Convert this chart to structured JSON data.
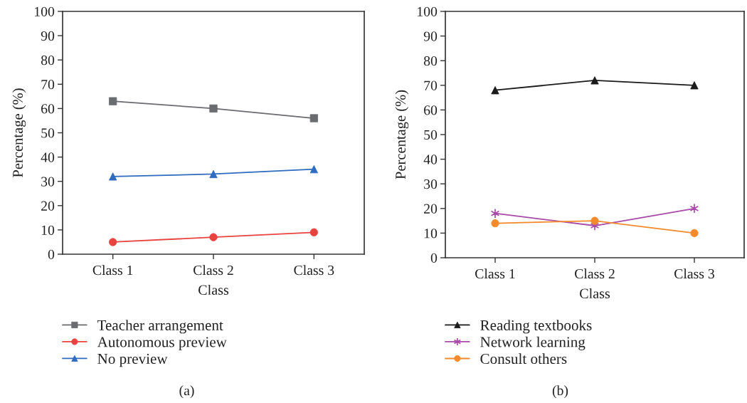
{
  "chart_data": [
    {
      "type": "line",
      "xlabel": "Class",
      "ylabel": "Percentage (%)",
      "categories": [
        "Class 1",
        "Class 2",
        "Class 3"
      ],
      "ylim": [
        0,
        100
      ],
      "yticks": [
        0,
        10,
        20,
        30,
        40,
        50,
        60,
        70,
        80,
        90,
        100
      ],
      "grid": false,
      "legend": "bottom",
      "line_style": "solid",
      "annotations": [
        "(a)"
      ],
      "series": [
        {
          "name": "Teacher arrangement",
          "color": "#6b6c70",
          "marker": "square",
          "values": [
            63,
            60,
            56
          ]
        },
        {
          "name": "Autonomous preview",
          "color": "#e8433f",
          "marker": "circle",
          "values": [
            5,
            7,
            9
          ]
        },
        {
          "name": "No preview",
          "color": "#2f6bbf",
          "marker": "triangle",
          "values": [
            32,
            33,
            35
          ]
        }
      ]
    },
    {
      "type": "line",
      "xlabel": "Class",
      "ylabel": "Percentage (%)",
      "categories": [
        "Class 1",
        "Class 2",
        "Class 3"
      ],
      "ylim": [
        0,
        100
      ],
      "yticks": [
        0,
        10,
        20,
        30,
        40,
        50,
        60,
        70,
        80,
        90,
        100
      ],
      "grid": false,
      "legend": "bottom",
      "line_style": "solid",
      "annotations": [
        "(b)"
      ],
      "series": [
        {
          "name": "Reading textbooks",
          "color": "#1a1a1a",
          "marker": "triangle",
          "values": [
            68,
            72,
            70
          ]
        },
        {
          "name": "Network learning",
          "color": "#a84aa8",
          "marker": "cross",
          "values": [
            18,
            13,
            20
          ]
        },
        {
          "name": "Consult others",
          "color": "#f48a2b",
          "marker": "circle",
          "values": [
            14,
            15,
            10
          ]
        }
      ]
    }
  ]
}
